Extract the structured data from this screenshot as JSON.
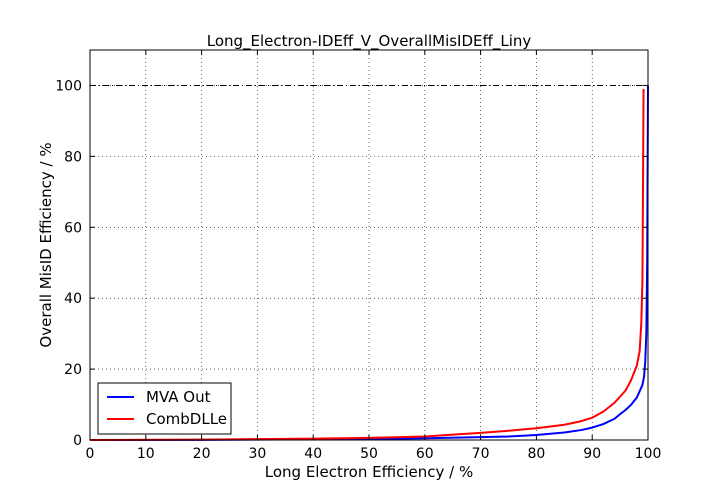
{
  "chart_data": {
    "type": "line",
    "title": "Long_Electron-IDEff_V_OverallMisIDEff_Liny",
    "xlabel": "Long Electron Efficiency / %",
    "ylabel": "Overall MisID Efficiency / %",
    "xlim": [
      0,
      100
    ],
    "ylim": [
      0,
      110
    ],
    "xticks": [
      "0",
      "10",
      "20",
      "30",
      "40",
      "50",
      "60",
      "70",
      "80",
      "90",
      "100"
    ],
    "yticks": [
      "0",
      "20",
      "40",
      "60",
      "80",
      "100"
    ],
    "xtick_values": [
      0,
      10,
      20,
      30,
      40,
      50,
      60,
      70,
      80,
      90,
      100
    ],
    "ytick_values": [
      0,
      20,
      40,
      60,
      80,
      100
    ],
    "grid": true,
    "reference_line": {
      "y": 100,
      "style": "dash-dot"
    },
    "legend_position": "lower-left",
    "series": [
      {
        "name": "MVA Out",
        "color": "#0000ff",
        "x": [
          0,
          20,
          40,
          50,
          60,
          70,
          75,
          80,
          85,
          88,
          90,
          92,
          94,
          95,
          96,
          97,
          98,
          99,
          99.3,
          99.5,
          99.7,
          99.85,
          100
        ],
        "y": [
          0,
          0.05,
          0.2,
          0.3,
          0.5,
          0.8,
          1.0,
          1.4,
          2.1,
          2.8,
          3.5,
          4.5,
          6.0,
          7.3,
          8.5,
          10.0,
          12.0,
          15.5,
          18.0,
          22.0,
          30.0,
          50.0,
          100
        ]
      },
      {
        "name": "CombDLLe",
        "color": "#ff0000",
        "x": [
          0,
          20,
          40,
          50,
          60,
          65,
          70,
          75,
          80,
          85,
          88,
          90,
          92,
          94,
          96,
          97,
          98,
          98.5,
          98.8,
          99.0,
          99.1,
          99.2
        ],
        "y": [
          0,
          0.1,
          0.4,
          0.6,
          1.0,
          1.5,
          2.0,
          2.6,
          3.3,
          4.3,
          5.3,
          6.3,
          8.0,
          10.5,
          14.0,
          17.0,
          21.0,
          25.0,
          33.0,
          45.0,
          70.0,
          99.0
        ]
      }
    ]
  }
}
